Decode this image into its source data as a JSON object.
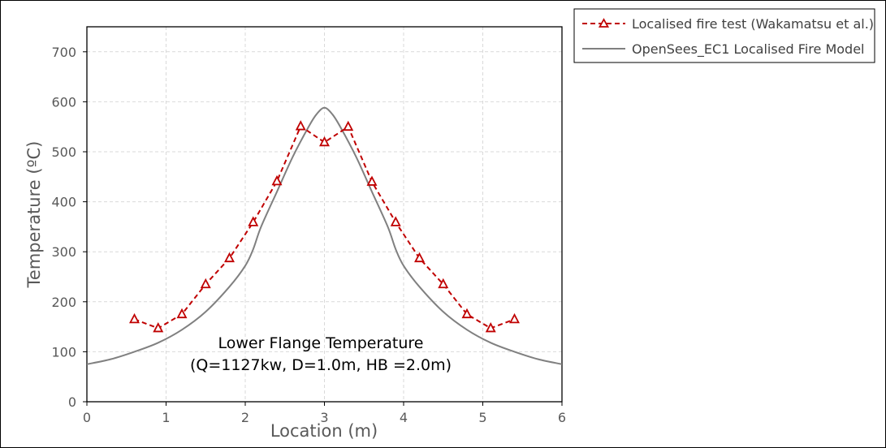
{
  "chart_data": {
    "type": "line",
    "xlabel": "Location (m)",
    "ylabel": "Temperature (ºC)",
    "xlim": [
      0,
      6
    ],
    "ylim": [
      0,
      750
    ],
    "xticks": [
      0,
      1,
      2,
      3,
      4,
      5,
      6
    ],
    "yticks": [
      0,
      100,
      200,
      300,
      400,
      500,
      600,
      700
    ],
    "grid": true,
    "legend_position": "outside-top-right",
    "annotation": [
      "Lower Flange Temperature",
      "(Q=1127kw, D=1.0m, HB =2.0m)"
    ],
    "series": [
      {
        "name": "Localised fire test (Wakamatsu et al.)",
        "style": "dashed-triangle",
        "color": "#c00000",
        "x": [
          0.6,
          0.9,
          1.2,
          1.5,
          1.8,
          2.1,
          2.4,
          2.7,
          3.0,
          3.3,
          3.6,
          3.9,
          4.2,
          4.5,
          4.8,
          5.1,
          5.4
        ],
        "y": [
          165,
          147,
          175,
          235,
          287,
          359,
          441,
          551,
          519,
          550,
          440,
          359,
          287,
          235,
          175,
          147,
          165
        ]
      },
      {
        "name": "OpenSees_EC1 Localised Fire Model",
        "style": "solid",
        "color": "#808080",
        "x": [
          0,
          0.3,
          0.6,
          0.9,
          1.2,
          1.5,
          1.8,
          2.0,
          2.1,
          2.2,
          2.4,
          2.6,
          2.8,
          2.9,
          3.0,
          3.1,
          3.2,
          3.4,
          3.6,
          3.8,
          3.9,
          4.0,
          4.2,
          4.5,
          4.8,
          5.1,
          5.4,
          5.7,
          6.0
        ],
        "y": [
          75,
          85,
          100,
          118,
          144,
          180,
          230,
          272,
          305,
          350,
          420,
          490,
          550,
          575,
          588,
          575,
          550,
          490,
          420,
          350,
          305,
          272,
          230,
          180,
          144,
          118,
          100,
          85,
          75
        ]
      }
    ]
  }
}
